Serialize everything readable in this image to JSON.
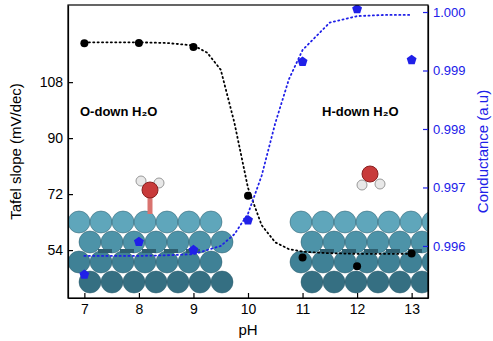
{
  "chart_data": {
    "type": "scatter",
    "x_label": "pH",
    "y_label": "Tafel slope (mV/dec)",
    "y2_label": "Conductance (a.u)",
    "annotations": [
      "O-down H₂O",
      "H-down H₂O"
    ],
    "xlim": [
      6.7,
      13.3
    ],
    "xticks": [
      7,
      8,
      9,
      10,
      11,
      12,
      13
    ],
    "ylim": [
      38.6,
      132.8
    ],
    "yticks": [
      54,
      72,
      90,
      108
    ],
    "y2lim": [
      0.99511,
      1.00012
    ],
    "y2ticks": [
      0.996,
      0.997,
      0.998,
      0.999,
      {
        "value": 1,
        "label": "1.000"
      }
    ],
    "series": [
      {
        "type": "scatter",
        "color": "#000000",
        "marker": "circle",
        "x": [
          7,
          8,
          9,
          10,
          11,
          12,
          13
        ],
        "values": [
          120.5,
          120.6,
          119.3,
          71.5,
          51.6,
          48.8,
          52.9
        ]
      },
      {
        "type": "scatter",
        "color": "#2020e8",
        "marker": "pentagon",
        "axis": "y2",
        "x": [
          7,
          8,
          9,
          10,
          11,
          12,
          13
        ],
        "values": [
          0.99551,
          0.99607,
          0.99593,
          0.99644,
          0.99915,
          1.00005,
          0.99918
        ]
      },
      {
        "type": "line",
        "color": "#000000",
        "line_style": "dotted",
        "x": [
          7,
          7.5,
          8,
          8.5,
          9,
          9.25,
          9.5,
          9.75,
          10,
          10.25,
          10.5,
          10.75,
          11,
          11.5,
          12,
          12.5,
          13
        ],
        "values": [
          120.8,
          120.8,
          120.8,
          120.6,
          119.8,
          117.5,
          112,
          95,
          74,
          62,
          56.5,
          54.3,
          53.5,
          53,
          52.8,
          52.8,
          52.8
        ]
      },
      {
        "type": "line",
        "color": "#2020e8",
        "line_style": "dotted",
        "axis": "y2",
        "x": [
          7,
          7.5,
          8,
          8.5,
          9,
          9.5,
          9.75,
          10,
          10.25,
          10.5,
          10.75,
          11,
          11.5,
          12,
          12.5,
          13
        ],
        "values": [
          0.99583,
          0.99583,
          0.99583,
          0.99584,
          0.99586,
          0.996,
          0.9962,
          0.99655,
          0.9972,
          0.9981,
          0.99885,
          0.99935,
          0.99982,
          0.99993,
          0.99995,
          0.99995
        ]
      }
    ]
  }
}
